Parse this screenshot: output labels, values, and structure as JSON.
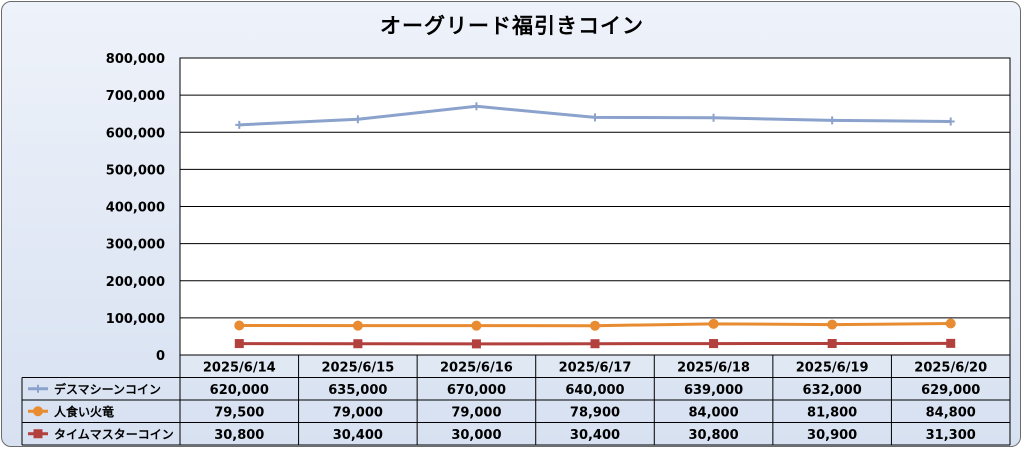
{
  "chart_data": {
    "type": "line",
    "title": "オーグリード福引きコイン",
    "categories": [
      "2025/6/14",
      "2025/6/15",
      "2025/6/16",
      "2025/6/17",
      "2025/6/18",
      "2025/6/19",
      "2025/6/20"
    ],
    "ylim": [
      0,
      800000
    ],
    "yticks": [
      0,
      100000,
      200000,
      300000,
      400000,
      500000,
      600000,
      700000,
      800000
    ],
    "ytick_labels": [
      "0",
      "100,000",
      "200,000",
      "300,000",
      "400,000",
      "500,000",
      "600,000",
      "700,000",
      "800,000"
    ],
    "grid": true,
    "legend": "data-table",
    "series": [
      {
        "name": "デスマシーンコイン",
        "color": "#8aa2cc",
        "marker": "plus",
        "values": [
          620000,
          635000,
          670000,
          640000,
          639000,
          632000,
          629000
        ],
        "labels": [
          "620,000",
          "635,000",
          "670,000",
          "640,000",
          "639,000",
          "632,000",
          "629,000"
        ]
      },
      {
        "name": "人食い火竜",
        "color": "#e88b31",
        "marker": "circle",
        "values": [
          79500,
          79000,
          79000,
          78900,
          84000,
          81800,
          84800
        ],
        "labels": [
          "79,500",
          "79,000",
          "79,000",
          "78,900",
          "84,000",
          "81,800",
          "84,800"
        ]
      },
      {
        "name": "タイムマスターコイン",
        "color": "#b2403d",
        "marker": "square",
        "values": [
          30800,
          30400,
          30000,
          30400,
          30800,
          30900,
          31300
        ],
        "labels": [
          "30,800",
          "30,400",
          "30,000",
          "30,400",
          "30,800",
          "30,900",
          "31,300"
        ]
      }
    ]
  }
}
